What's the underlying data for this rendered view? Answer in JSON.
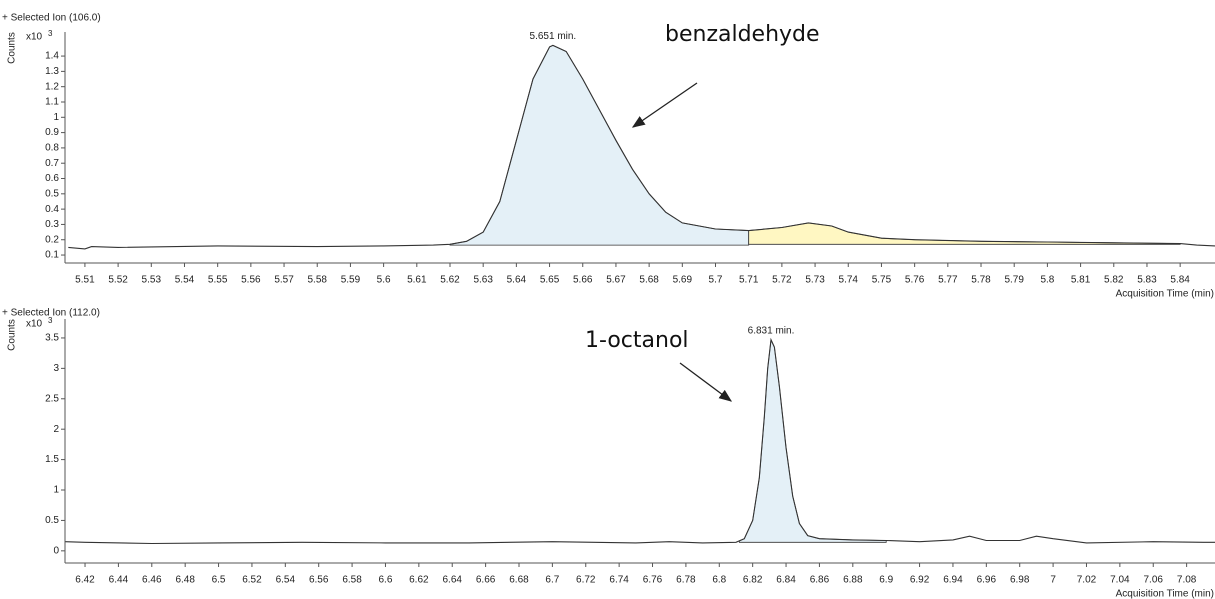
{
  "chart_data": [
    {
      "type": "line",
      "title": "+ Selected Ion (106.0)",
      "ylabel": "Counts",
      "y_scale_label": "x10",
      "y_scale_exponent": "3",
      "xlabel": "Acquisition Time (min)",
      "annotation": "benzaldehyde",
      "x": [
        5.505,
        5.51,
        5.512,
        5.52,
        5.55,
        5.58,
        5.6,
        5.615,
        5.62,
        5.625,
        5.63,
        5.635,
        5.64,
        5.645,
        5.65,
        5.651,
        5.655,
        5.66,
        5.665,
        5.67,
        5.675,
        5.68,
        5.685,
        5.69,
        5.7,
        5.71,
        5.72,
        5.728,
        5.735,
        5.74,
        5.75,
        5.76,
        5.78,
        5.8,
        5.82,
        5.84,
        5.845,
        5.8505
      ],
      "series": [
        {
          "color": "#333333",
          "values": [
            0.15,
            0.14,
            0.155,
            0.15,
            0.16,
            0.155,
            0.16,
            0.165,
            0.17,
            0.19,
            0.25,
            0.45,
            0.85,
            1.25,
            1.46,
            1.47,
            1.43,
            1.25,
            1.05,
            0.85,
            0.66,
            0.5,
            0.38,
            0.31,
            0.27,
            0.26,
            0.28,
            0.31,
            0.29,
            0.25,
            0.21,
            0.2,
            0.19,
            0.185,
            0.18,
            0.175,
            0.165,
            0.16
          ]
        }
      ],
      "peaks": [
        {
          "start": 5.62,
          "end": 5.71,
          "baseline": 0.165,
          "color": "#e4f0f7"
        },
        {
          "start": 5.71,
          "end": 5.84,
          "baseline": 0.17,
          "color": "#fff7c2"
        }
      ],
      "peak_labels": [
        {
          "x": 5.651,
          "y": 1.47,
          "label": "5.651 min."
        }
      ],
      "xlim": [
        5.504,
        5.8505
      ],
      "ylim": [
        0.048,
        1.505
      ],
      "xticks": [
        5.51,
        5.52,
        5.53,
        5.54,
        5.55,
        5.56,
        5.57,
        5.58,
        5.59,
        5.6,
        5.61,
        5.62,
        5.63,
        5.64,
        5.65,
        5.66,
        5.67,
        5.68,
        5.69,
        5.7,
        5.71,
        5.72,
        5.73,
        5.74,
        5.75,
        5.76,
        5.77,
        5.78,
        5.79,
        5.8,
        5.81,
        5.82,
        5.83,
        5.84
      ],
      "yticks": [
        0.1,
        0.2,
        0.3,
        0.4,
        0.5,
        0.6,
        0.7,
        0.8,
        0.9,
        1,
        1.1,
        1.2,
        1.3,
        1.4
      ]
    },
    {
      "type": "line",
      "title": "+ Selected Ion (112.0)",
      "ylabel": "Counts",
      "y_scale_label": "x10",
      "y_scale_exponent": "3",
      "xlabel": "Acquisition Time (min)",
      "annotation": "1-octanol",
      "x": [
        6.408,
        6.42,
        6.46,
        6.5,
        6.55,
        6.6,
        6.65,
        6.7,
        6.75,
        6.77,
        6.79,
        6.81,
        6.815,
        6.82,
        6.824,
        6.827,
        6.829,
        6.831,
        6.833,
        6.836,
        6.84,
        6.844,
        6.848,
        6.853,
        6.86,
        6.88,
        6.9,
        6.92,
        6.94,
        6.95,
        6.96,
        6.98,
        6.99,
        7.0,
        7.02,
        7.06,
        7.09,
        7.097
      ],
      "series": [
        {
          "color": "#333333",
          "values": [
            0.15,
            0.14,
            0.12,
            0.13,
            0.14,
            0.13,
            0.13,
            0.15,
            0.13,
            0.15,
            0.13,
            0.14,
            0.2,
            0.5,
            1.2,
            2.2,
            3.0,
            3.47,
            3.35,
            2.7,
            1.7,
            0.9,
            0.45,
            0.25,
            0.2,
            0.18,
            0.17,
            0.15,
            0.18,
            0.24,
            0.17,
            0.17,
            0.24,
            0.2,
            0.13,
            0.15,
            0.14,
            0.14
          ]
        }
      ],
      "peaks": [
        {
          "start": 6.812,
          "end": 6.9,
          "baseline": 0.14,
          "color": "#e4f0f7"
        }
      ],
      "peak_labels": [
        {
          "x": 6.831,
          "y": 3.47,
          "label": "6.831 min."
        }
      ],
      "xlim": [
        6.408,
        7.097
      ],
      "ylim": [
        -0.2,
        3.68
      ],
      "xticks": [
        6.42,
        6.44,
        6.46,
        6.48,
        6.5,
        6.52,
        6.54,
        6.56,
        6.58,
        6.6,
        6.62,
        6.64,
        6.66,
        6.68,
        6.7,
        6.72,
        6.74,
        6.76,
        6.78,
        6.8,
        6.82,
        6.84,
        6.86,
        6.88,
        6.9,
        6.92,
        6.94,
        6.96,
        6.98,
        7,
        7.02,
        7.04,
        7.06,
        7.08
      ],
      "yticks": [
        0,
        0.5,
        1,
        1.5,
        2,
        2.5,
        3,
        3.5
      ]
    }
  ]
}
